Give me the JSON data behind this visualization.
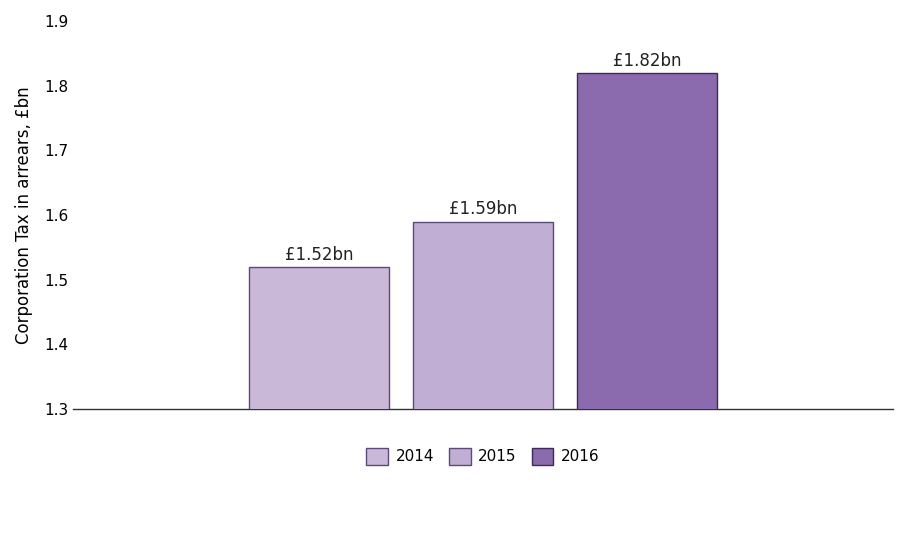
{
  "categories": [
    "2014",
    "2015",
    "2016"
  ],
  "values": [
    1.52,
    1.59,
    1.82
  ],
  "labels": [
    "£1.52bn",
    "£1.59bn",
    "£1.82bn"
  ],
  "bar_colors": [
    "#c9b8d8",
    "#c0aed4",
    "#8b6aad"
  ],
  "bar_edge_colors": [
    "#5a4a7a",
    "#5a4a7a",
    "#3d2a5a"
  ],
  "ylabel": "Corporation Tax in arrears, £bn",
  "ylim": [
    1.3,
    1.9
  ],
  "yticks": [
    1.3,
    1.4,
    1.5,
    1.6,
    1.7,
    1.8,
    1.9
  ],
  "legend_colors": [
    "#c9b8d8",
    "#c0aed4",
    "#8b6aad"
  ],
  "legend_edge_colors": [
    "#5a4a7a",
    "#5a4a7a",
    "#3d2a5a"
  ],
  "legend_labels": [
    "2014",
    "2015",
    "2016"
  ],
  "annotation_fontsize": 12,
  "ylabel_fontsize": 12,
  "tick_fontsize": 11,
  "legend_fontsize": 11,
  "bar_width": 0.85,
  "x_positions": [
    2,
    3,
    4
  ],
  "xlim": [
    0.5,
    5.5
  ],
  "background_color": "#ffffff"
}
